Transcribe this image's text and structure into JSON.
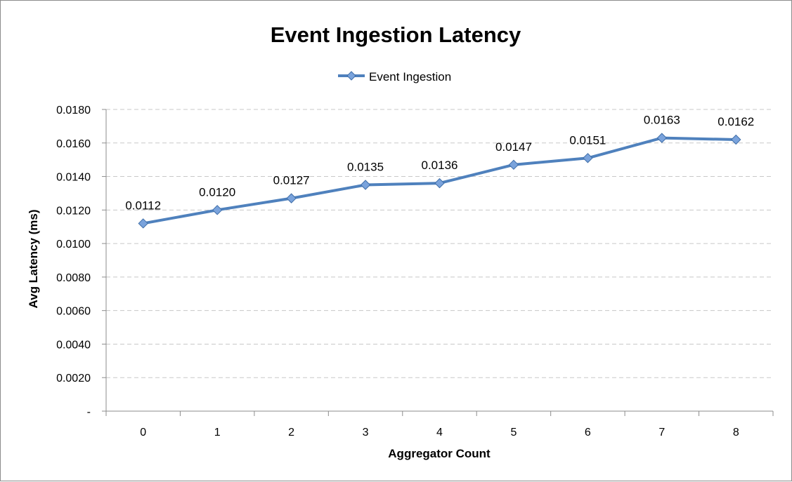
{
  "chart_data": {
    "type": "line",
    "title": "Event Ingestion Latency",
    "xlabel": "Aggregator Count",
    "ylabel": "Avg Latency (ms)",
    "categories": [
      "0",
      "1",
      "2",
      "3",
      "4",
      "5",
      "6",
      "7",
      "8"
    ],
    "series": [
      {
        "name": "Event Ingestion",
        "values": [
          0.0112,
          0.012,
          0.0127,
          0.0135,
          0.0136,
          0.0147,
          0.0151,
          0.0163,
          0.0162
        ],
        "data_labels": [
          "0.0112",
          "0.0120",
          "0.0127",
          "0.0135",
          "0.0136",
          "0.0147",
          "0.0151",
          "0.0163",
          "0.0162"
        ],
        "color": "#4f81bd",
        "marker": "diamond",
        "marker_fill": "#7aa3dc"
      }
    ],
    "ylim": [
      0,
      0.018
    ],
    "yticks": [
      0,
      0.002,
      0.004,
      0.006,
      0.008,
      0.01,
      0.012,
      0.014,
      0.016,
      0.018
    ],
    "ytick_labels": [
      "-",
      "0.0020",
      "0.0040",
      "0.0060",
      "0.0080",
      "0.0100",
      "0.0120",
      "0.0140",
      "0.0160",
      "0.0180"
    ],
    "grid": true,
    "grid_color": "#c8c8c8",
    "legend_position": "top-center"
  }
}
